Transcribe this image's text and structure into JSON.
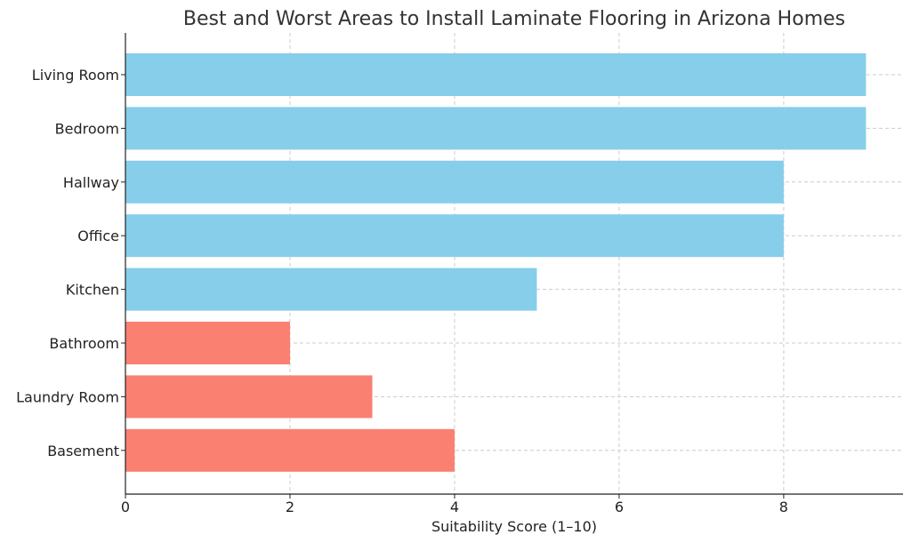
{
  "chart_data": {
    "type": "bar",
    "orientation": "horizontal",
    "title": "Best and Worst Areas to Install Laminate Flooring in Arizona Homes",
    "xlabel": "Suitability Score (1–10)",
    "ylabel": "",
    "categories": [
      "Living Room",
      "Bedroom",
      "Hallway",
      "Office",
      "Kitchen",
      "Bathroom",
      "Laundry Room",
      "Basement"
    ],
    "values": [
      9,
      9,
      8,
      8,
      5,
      2,
      3,
      4
    ],
    "colors": [
      "#87CEEB",
      "#87CEEB",
      "#87CEEB",
      "#87CEEB",
      "#87CEEB",
      "#FA8072",
      "#FA8072",
      "#FA8072"
    ],
    "xlim": [
      0,
      9.45
    ],
    "xticks": [
      0,
      2,
      4,
      6,
      8
    ],
    "grid": true
  }
}
